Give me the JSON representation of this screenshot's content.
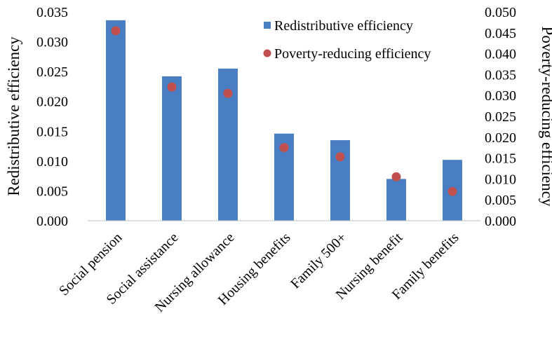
{
  "chart_data": {
    "type": "bar",
    "categories": [
      "Social pension",
      "Social assistance",
      "Nursing allowance",
      "Housing benefits",
      "Family 500+",
      "Nursing benefit",
      "Family benefits"
    ],
    "series": [
      {
        "name": "Redistributive efficiency",
        "type": "bar",
        "axis": "left",
        "color": "#4A7EC2",
        "values": [
          0.0336,
          0.0242,
          0.0255,
          0.0146,
          0.0135,
          0.007,
          0.0102
        ]
      },
      {
        "name": "Poverty-reducing efficiency",
        "type": "scatter",
        "axis": "right",
        "color": "#C0504D",
        "values": [
          0.0455,
          0.032,
          0.0305,
          0.0175,
          0.0153,
          0.0105,
          0.007
        ]
      }
    ],
    "ylabel": "Redistributive efficiency",
    "ylabel_right": "Poverty-reducing efficiency",
    "ylim": [
      0,
      0.035
    ],
    "ylim_right": [
      0,
      0.05
    ],
    "yticks": [
      "0.000",
      "0.005",
      "0.010",
      "0.015",
      "0.020",
      "0.025",
      "0.030",
      "0.035"
    ],
    "yticks_right": [
      "0.000",
      "0.005",
      "0.010",
      "0.015",
      "0.020",
      "0.025",
      "0.030",
      "0.035",
      "0.040",
      "0.045",
      "0.050"
    ],
    "legend": {
      "position": "top-right",
      "entries": [
        "Redistributive efficiency",
        "Poverty-reducing efficiency"
      ]
    },
    "grid": false
  }
}
